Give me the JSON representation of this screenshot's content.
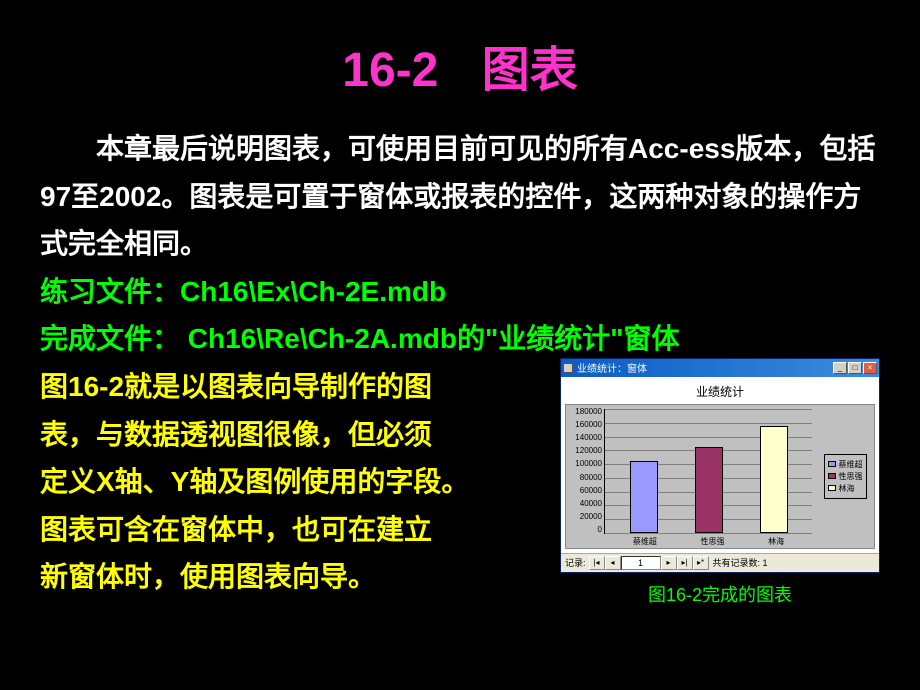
{
  "title": {
    "number": "16-2",
    "text": "图表"
  },
  "para1": "本章最后说明图表，可使用目前可见的所有Acc-ess版本，包括97至2002。图表是可置于窗体或报表的控件，这两种对象的操作方式完全相同。",
  "practice": {
    "label": "练习文件：",
    "path": "Ch16\\Ex\\Ch-2E.mdb"
  },
  "complete": {
    "label": "完成文件： ",
    "path": "Ch16\\Re\\Ch-2A.mdb",
    "suffix": "的\"业绩统计\"窗体"
  },
  "para2_lines": [
    "图16-2就是以图表向导制作的图",
    "表，与数据透视图很像，但必须",
    "定义X轴、Y轴及图例使用的字段。",
    "图表可含在窗体中，也可在建立",
    "新窗体时，使用图表向导。"
  ],
  "chart": {
    "window_title": "业绩统计：窗体",
    "heading": "业绩统计",
    "type": "bar",
    "categories": [
      "蔡维超",
      "性思强",
      "林海"
    ],
    "values": [
      105000,
      125000,
      155000
    ],
    "bar_colors": [
      "#9999ff",
      "#993366",
      "#ffffcc"
    ],
    "ylim": [
      0,
      180000
    ],
    "ytick_step": 20000,
    "y_ticks": [
      "180000",
      "160000",
      "140000",
      "120000",
      "100000",
      "80000",
      "60000",
      "40000",
      "20000",
      "0"
    ],
    "grid_color": "#808080",
    "plot_bg": "#c0c0c0",
    "legend_items": [
      {
        "label": "蔡维超",
        "color": "#9999ff"
      },
      {
        "label": "性思强",
        "color": "#993366"
      },
      {
        "label": "林海",
        "color": "#ffffcc"
      }
    ],
    "record_nav": {
      "label": "记录:",
      "current": "1",
      "info": "共有记录数: 1"
    },
    "win_buttons": {
      "min": "_",
      "max": "□",
      "close": "×"
    },
    "nav_buttons": {
      "first": "|◂",
      "prev": "◂",
      "next": "▸",
      "last": "▸|",
      "new": "▸*"
    }
  },
  "caption": "图16-2完成的图表"
}
